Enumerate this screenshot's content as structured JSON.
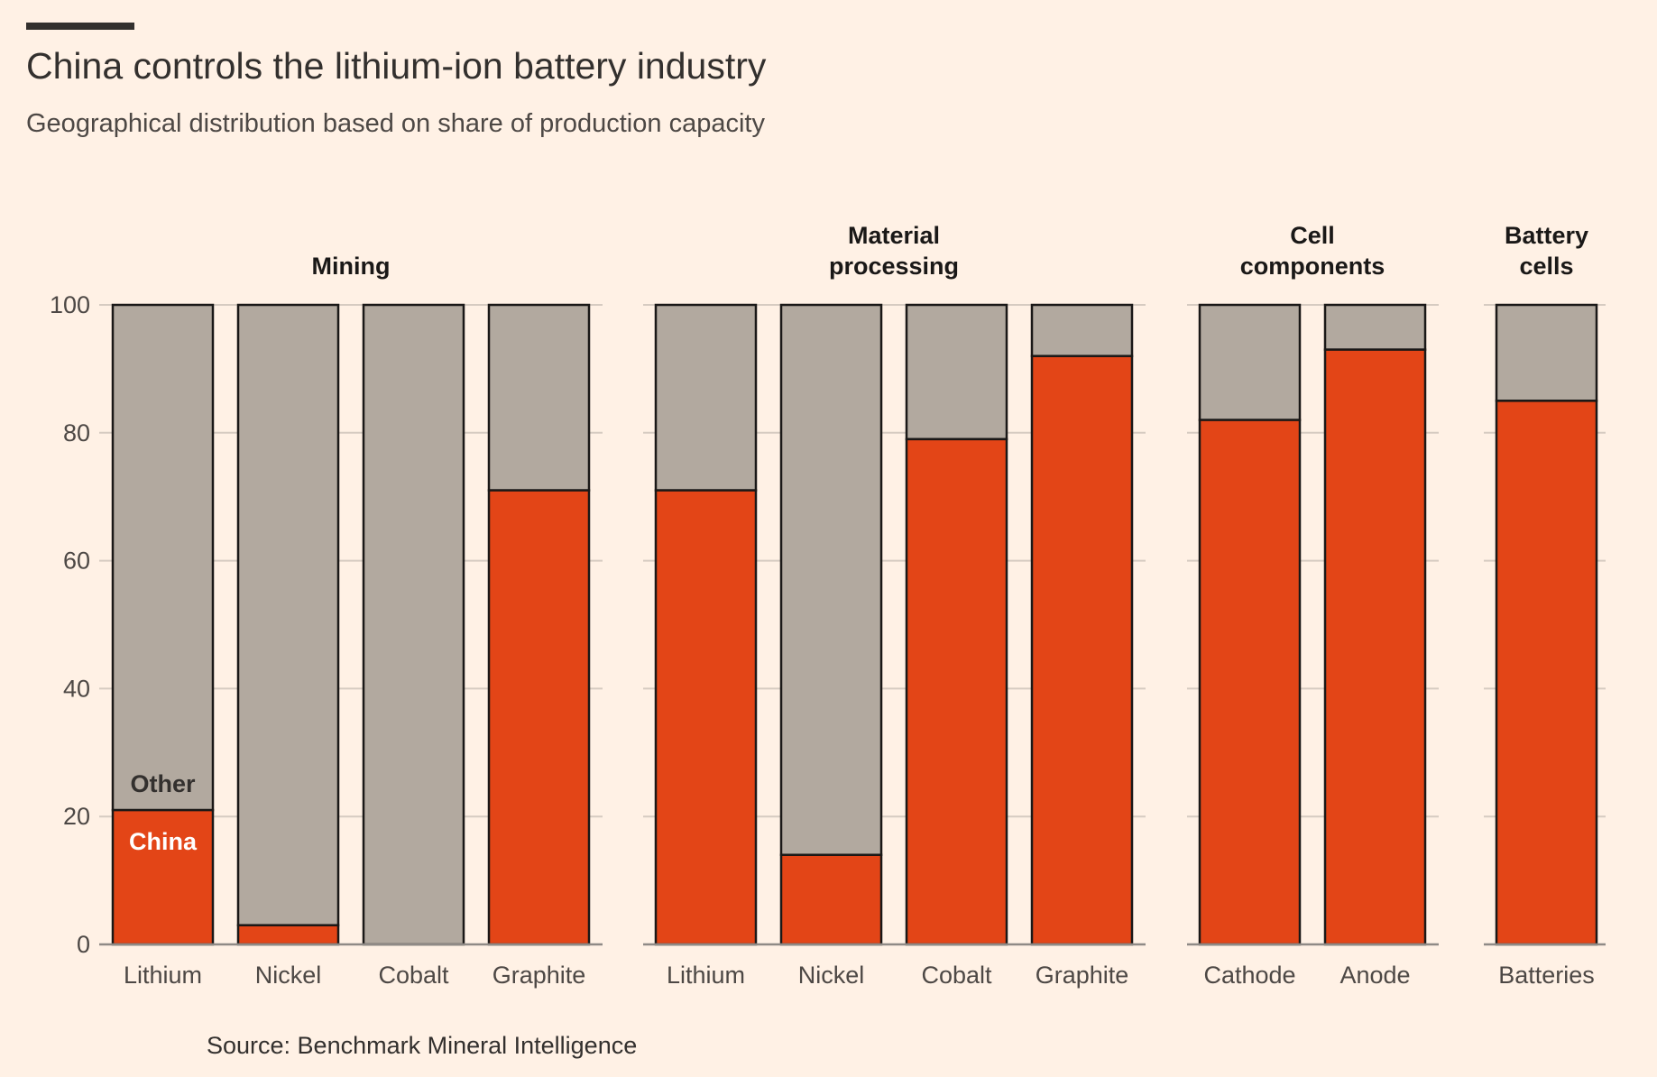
{
  "header": {
    "title": "China controls the lithium-ion battery industry",
    "subtitle": "Geographical distribution based on share of production capacity"
  },
  "footer": {
    "source": "Source: Benchmark Mineral Intelligence"
  },
  "colors": {
    "china": "#E34517",
    "other": "#B2A99F",
    "background": "#FFF1E5"
  },
  "chart_data": {
    "type": "bar",
    "stacked": true,
    "title": "China controls the lithium-ion battery industry",
    "subtitle": "Geographical distribution based on share of production capacity",
    "xlabel": "",
    "ylabel": "",
    "ylim": [
      0,
      100
    ],
    "yticks": [
      0,
      20,
      40,
      60,
      80,
      100
    ],
    "grid": true,
    "legend": {
      "placement": "inside-first-bar",
      "entries": [
        "Other",
        "China"
      ]
    },
    "groups": [
      {
        "label_lines": [
          "Mining"
        ],
        "categories": [
          "Lithium",
          "Nickel",
          "Cobalt",
          "Graphite"
        ],
        "china": [
          21,
          3,
          0,
          71
        ]
      },
      {
        "label_lines": [
          "Material",
          "processing"
        ],
        "categories": [
          "Lithium",
          "Nickel",
          "Cobalt",
          "Graphite"
        ],
        "china": [
          71,
          14,
          79,
          92
        ]
      },
      {
        "label_lines": [
          "Cell",
          "components"
        ],
        "categories": [
          "Cathode",
          "Anode"
        ],
        "china": [
          82,
          93
        ]
      },
      {
        "label_lines": [
          "Battery",
          "cells"
        ],
        "categories": [
          "Batteries"
        ],
        "china": [
          85
        ]
      }
    ],
    "series": [
      {
        "name": "China",
        "values": [
          21,
          3,
          0,
          71,
          71,
          14,
          79,
          92,
          82,
          93,
          85
        ]
      },
      {
        "name": "Other",
        "values": [
          79,
          97,
          100,
          29,
          29,
          86,
          21,
          8,
          18,
          7,
          15
        ]
      }
    ]
  }
}
